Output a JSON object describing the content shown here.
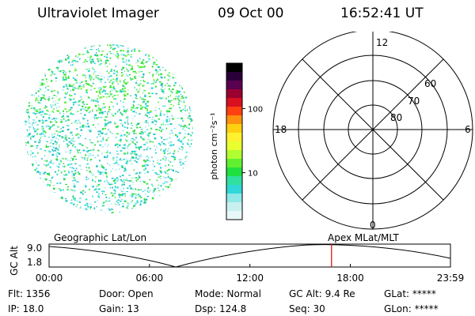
{
  "header": {
    "title": "Ultraviolet Imager",
    "date": "09 Oct 00",
    "time": "16:52:41 UT"
  },
  "colorbar": {
    "unit_label": "photon cm⁻²s⁻¹",
    "tick_labels": [
      "100",
      "10"
    ],
    "colors": [
      "#000000",
      "#2a0038",
      "#5a0050",
      "#9a0030",
      "#d81020",
      "#ff4010",
      "#ff9010",
      "#ffd010",
      "#fff030",
      "#e8ff30",
      "#b0ff30",
      "#60f030",
      "#20e040",
      "#30e0a0",
      "#30d8d8",
      "#90e8e8",
      "#c8f0f0",
      "#e8f8f8"
    ],
    "tick_fractions": [
      0.29,
      0.7
    ]
  },
  "polar_plot": {
    "mlt_labels": {
      "top": "12",
      "left": "18",
      "right": "6",
      "bottom": "0"
    },
    "lat_labels": [
      "60",
      "70",
      "80"
    ]
  },
  "image_panel": {
    "colors": [
      "#30e040",
      "#60f030",
      "#30d8d8",
      "#90e8e8",
      "#20c0c0"
    ]
  },
  "timeline": {
    "left_label": "Geographic Lat/Lon",
    "right_label": "Apex MLat/MLT",
    "y_axis_label": "GC Alt",
    "y_ticks": [
      "9.0",
      "1.8"
    ],
    "x_ticks": [
      "00:00",
      "06:00",
      "12:00",
      "18:00",
      "23:59"
    ],
    "marker_time": "16:52:41",
    "marker_color": "#e00000"
  },
  "info": {
    "flt": "Flt: 1356",
    "door": "Door: Open",
    "mode": "Mode: Normal",
    "gc_alt": "GC Alt: 9.4 Re",
    "glat": "GLat: *****",
    "ip": "IP: 18.0",
    "gain": "Gain: 13",
    "dsp": "Dsp:  124.8",
    "seq": "Seq: 30",
    "glon": "GLon: *****"
  }
}
